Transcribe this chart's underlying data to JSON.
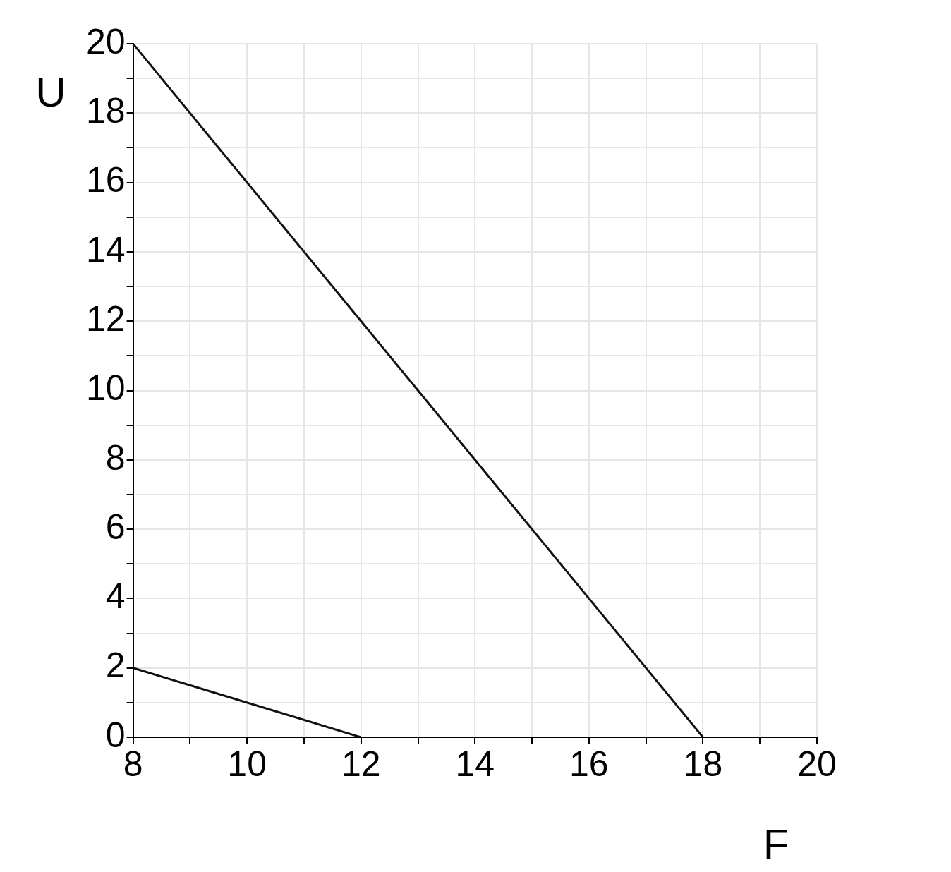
{
  "chart_data": {
    "type": "line",
    "xlabel": "F",
    "ylabel": "U",
    "series": [
      {
        "color": "#111111",
        "x": [
          8,
          18
        ],
        "values": [
          20,
          0
        ]
      },
      {
        "color": "#111111",
        "x": [
          8,
          12
        ],
        "values": [
          2,
          0
        ]
      }
    ],
    "xlim": [
      8,
      20
    ],
    "ylim": [
      0,
      20
    ],
    "xticks": [
      8,
      {
        "value": 9,
        "label": null
      },
      10,
      {
        "value": 11,
        "label": null
      },
      12,
      {
        "value": 13,
        "label": null
      },
      14,
      {
        "value": 15,
        "label": null
      },
      16,
      {
        "value": 17,
        "label": null
      },
      18,
      {
        "value": 19,
        "label": null
      },
      20
    ],
    "yticks": [
      0,
      {
        "value": 1,
        "label": null
      },
      2,
      {
        "value": 3,
        "label": null
      },
      4,
      {
        "value": 5,
        "label": null
      },
      6,
      {
        "value": 7,
        "label": null
      },
      8,
      {
        "value": 9,
        "label": null
      },
      10,
      {
        "value": 11,
        "label": null
      },
      12,
      {
        "value": 13,
        "label": null
      },
      14,
      {
        "value": 15,
        "label": null
      },
      16,
      {
        "value": 17,
        "label": null
      },
      18,
      {
        "value": 19,
        "label": null
      },
      20
    ],
    "grid": true,
    "marker": "none",
    "line_style": "solid"
  }
}
